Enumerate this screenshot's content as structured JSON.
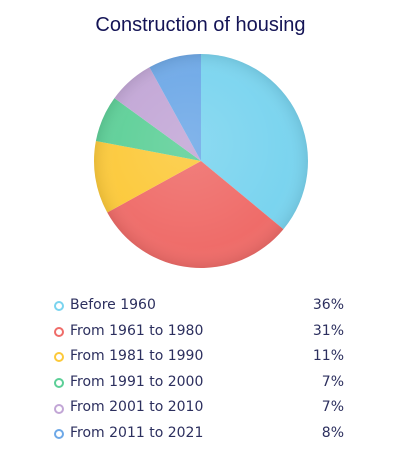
{
  "chart_data": {
    "type": "pie",
    "title": "Construction of housing",
    "slices": [
      {
        "label": "Before 1960",
        "value": 36,
        "value_label": "36%",
        "color": "#7ad4ef"
      },
      {
        "label": "From 1961 to 1980",
        "value": 31,
        "value_label": "31%",
        "color": "#ef6c69"
      },
      {
        "label": "From 1981 to 1990",
        "value": 11,
        "value_label": "11%",
        "color": "#fcc93a"
      },
      {
        "label": "From 1991 to 2000",
        "value": 7,
        "value_label": "7%",
        "color": "#5ccf97"
      },
      {
        "label": "From 2001 to 2010",
        "value": 7,
        "value_label": "7%",
        "color": "#c2a6d6"
      },
      {
        "label": "From 2011 to 2021",
        "value": 8,
        "value_label": "8%",
        "color": "#6da8e7"
      }
    ],
    "legend_position": "bottom"
  }
}
